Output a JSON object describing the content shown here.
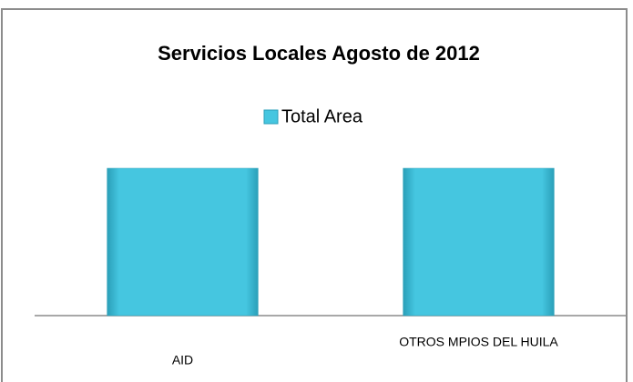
{
  "chart_data": {
    "type": "bar",
    "title": "Servicios Locales Agosto de 2012",
    "categories": [
      "AID",
      "OTROS MPIOS DEL HUILA"
    ],
    "series": [
      {
        "name": "Total  Area",
        "color": "#45c6e0",
        "values": [
          1,
          1
        ]
      }
    ]
  }
}
